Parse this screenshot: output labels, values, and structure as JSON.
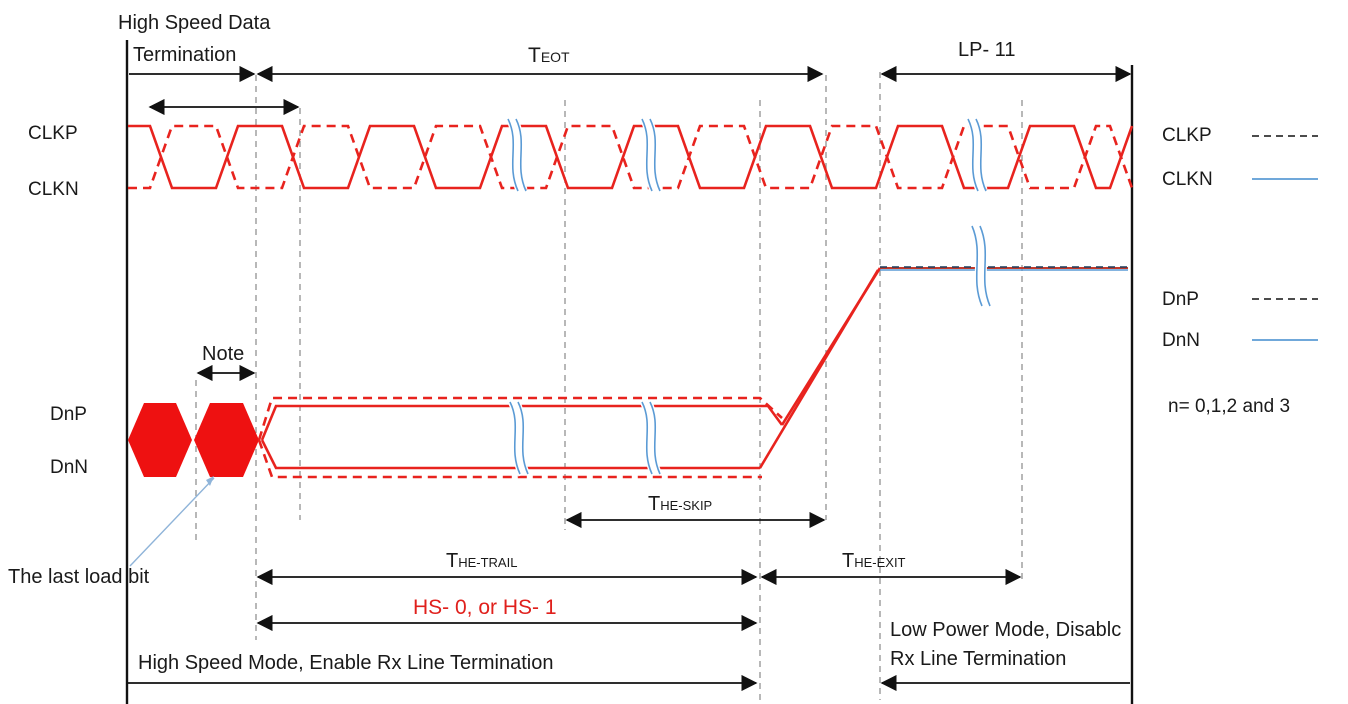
{
  "labels": {
    "hs_data_termination_line1": "High Speed Data",
    "hs_data_termination_line2": "Termination",
    "t_eot_main": "T",
    "t_eot_sub": "EOT",
    "lp11": "LP- 11",
    "clkp": "CLKP",
    "clkn": "CLKN",
    "dnp": "DnP",
    "dnn": "DnN",
    "note": "Note",
    "last_load_bit": "The last load bit",
    "t_he_skip_main": "T",
    "t_he_skip_sub": "HE-SKIP",
    "t_he_trail_main": "T",
    "t_he_trail_sub": "HE-TRAIL",
    "t_he_exit_main": "T",
    "t_he_exit_sub": "HE-EXIT",
    "hs_state": "HS- 0, or HS- 1",
    "hs_mode": "High Speed Mode, Enable Rx Line Termination",
    "lp_mode_line1": "Low Power Mode, Disablc",
    "lp_mode_line2": "Rx Line Termination"
  },
  "legend": {
    "clkp": "CLKP",
    "clkn": "CLKN",
    "dnp": "DnP",
    "dnn": "DnN",
    "n_values": "n= 0,1,2 and 3"
  },
  "colors": {
    "signal": "#e8231e",
    "break_mark": "#5b9bd5",
    "text": "#1a1a1a",
    "hs_state_text": "#e0201c"
  }
}
